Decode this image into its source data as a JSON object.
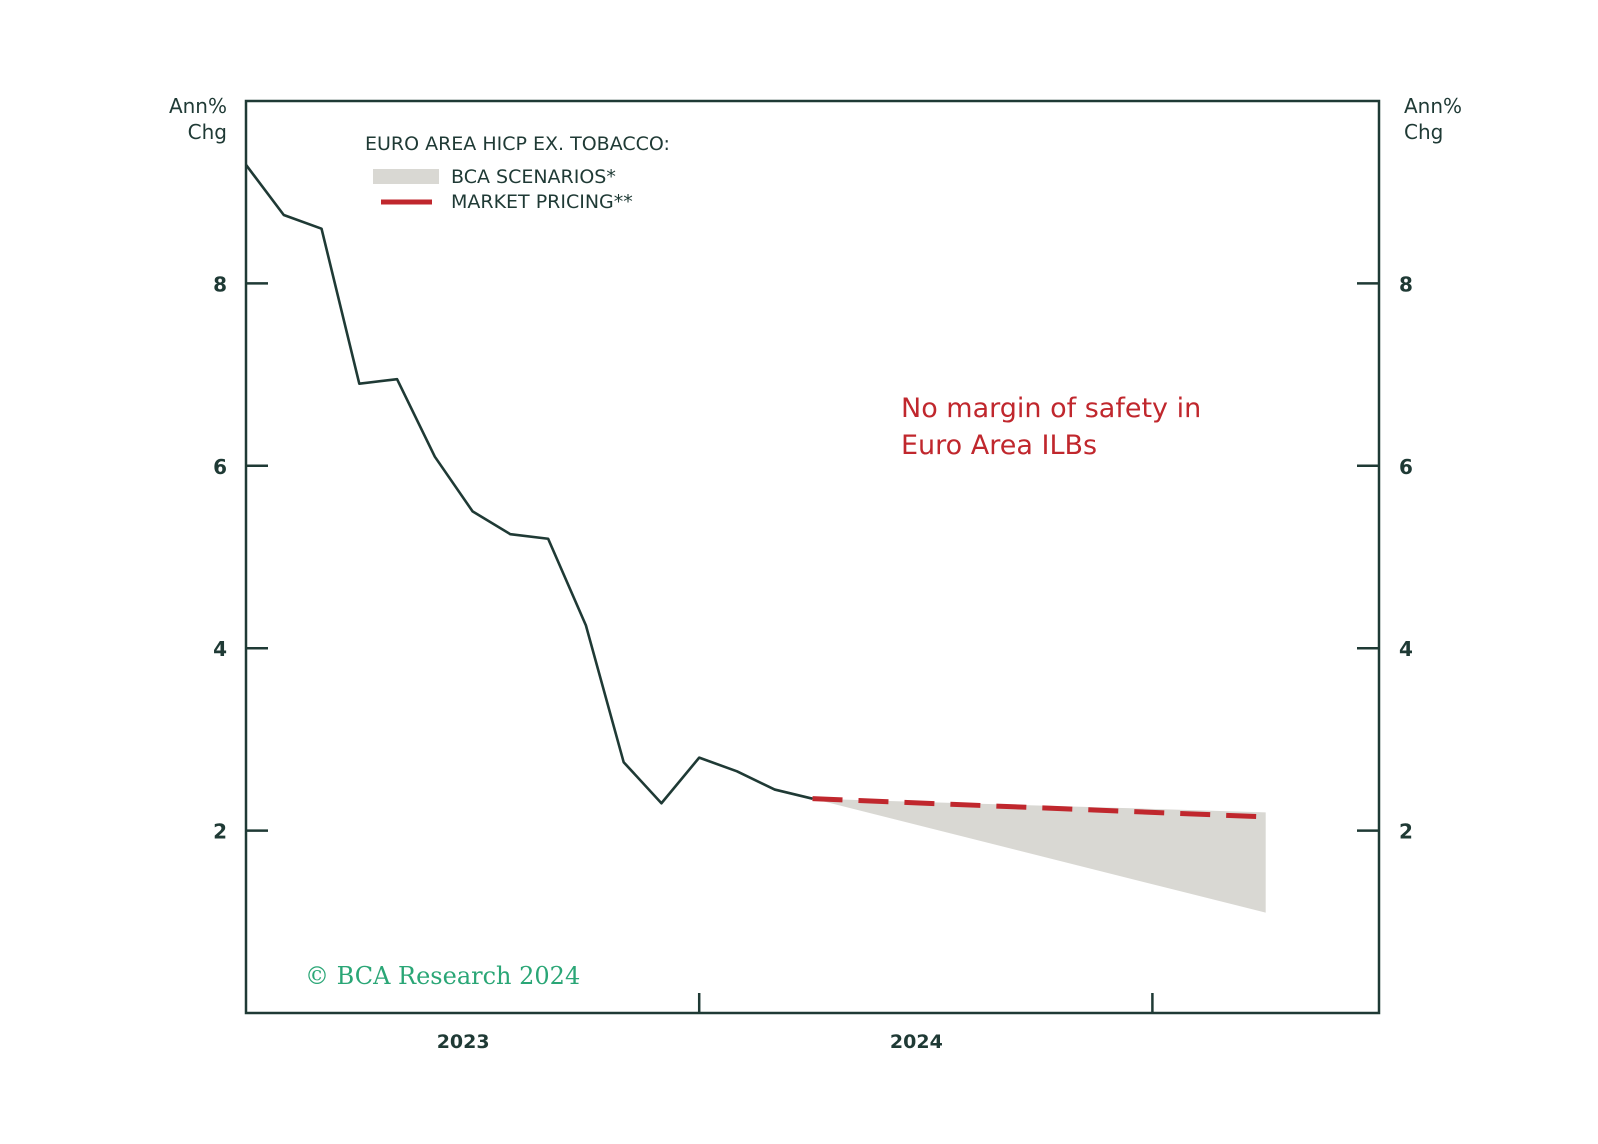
{
  "chart_data": {
    "type": "line",
    "title": "EURO AREA HICP EX. TOBACCO:",
    "y_unit_left": [
      "Ann%",
      "Chg"
    ],
    "y_unit_right": [
      "Ann%",
      "Chg"
    ],
    "ylim": [
      0,
      10
    ],
    "yticks": [
      2,
      4,
      6,
      8
    ],
    "ytick_labels": [
      "2",
      "4",
      "6",
      "8"
    ],
    "xlim": [
      0,
      30
    ],
    "x_dividers": [
      12,
      24
    ],
    "x_labels": [
      {
        "label": "2023",
        "x": 5.75
      },
      {
        "label": "2024",
        "x": 17.75
      }
    ],
    "series": [
      {
        "name": "Euro Area HICP ex. tobacco",
        "color": "#1f3a35",
        "x": [
          0,
          1,
          2,
          3,
          4,
          5,
          6,
          7,
          8,
          9,
          10,
          11,
          12,
          13,
          14,
          15
        ],
        "values": [
          9.3,
          8.75,
          8.6,
          6.9,
          6.95,
          6.1,
          5.5,
          5.25,
          5.2,
          4.25,
          2.75,
          2.3,
          2.8,
          2.65,
          2.45,
          2.35
        ]
      },
      {
        "name": "MARKET PRICING**",
        "color": "#c0272d",
        "style": "dashed",
        "x": [
          15,
          27
        ],
        "values": [
          2.35,
          2.15
        ]
      }
    ],
    "band": {
      "name": "BCA SCENARIOS*",
      "color": "#d9d8d3",
      "x": [
        15,
        27
      ],
      "upper": [
        2.35,
        2.2
      ],
      "lower": [
        2.35,
        1.1
      ]
    },
    "legend": {
      "title": "EURO AREA HICP EX. TOBACCO:",
      "items": [
        {
          "label": "BCA SCENARIOS*",
          "kind": "band",
          "color": "#d9d8d3"
        },
        {
          "label": "MARKET PRICING**",
          "kind": "dashed",
          "color": "#c0272d"
        }
      ]
    },
    "annotation": [
      "No margin of safety in",
      "Euro Area ILBs"
    ],
    "copyright": "© BCA Research 2024"
  }
}
